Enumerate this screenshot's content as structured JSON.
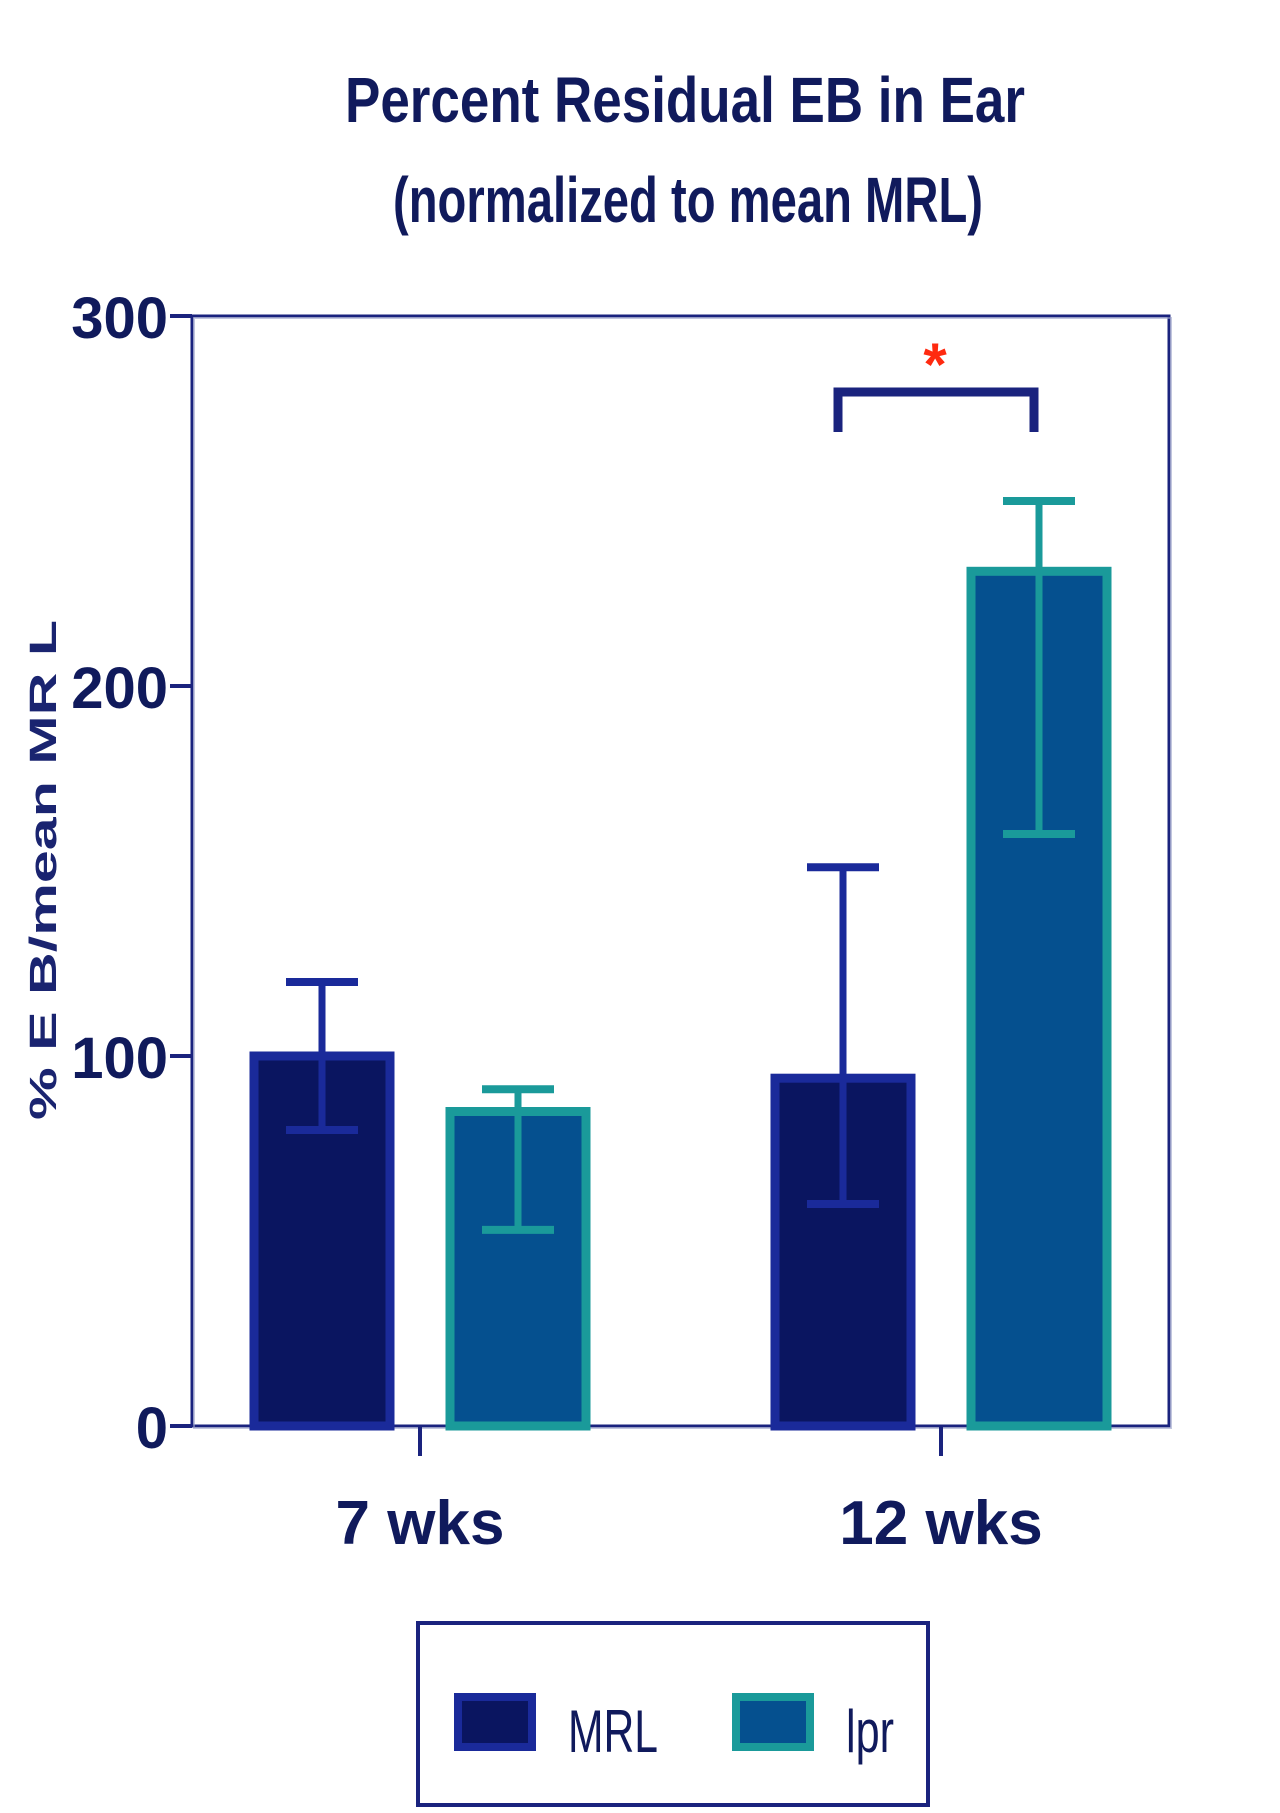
{
  "chart_data": {
    "type": "bar",
    "title": "Percent Residual EB in Ear",
    "subtitle": "(normalized to mean MRL)",
    "ylabel": "% E B/mean MR L",
    "xlabel": "",
    "categories": [
      "7 wks",
      "12 wks"
    ],
    "ylim": [
      0,
      300
    ],
    "yticks": [
      0,
      100,
      200,
      300
    ],
    "grid": false,
    "legend_position": "bottom",
    "series": [
      {
        "name": "MRL",
        "values": [
          100,
          94
        ],
        "error_low": [
          80,
          60
        ],
        "error_high": [
          120,
          151
        ]
      },
      {
        "name": "lpr",
        "values": [
          85,
          231
        ],
        "error_low": [
          53,
          160
        ],
        "error_high": [
          91,
          250
        ]
      }
    ],
    "significance": [
      {
        "category": "12 wks",
        "label": "*"
      }
    ]
  },
  "colors": {
    "mrl_fill": "#0a1560",
    "mrl_edge": "#1a2a9a",
    "lpr_fill": "#05508f",
    "lpr_edge": "#1a9a9a",
    "axis": "#1a237e",
    "text": "#101a5c",
    "star": "#ff2a10"
  }
}
